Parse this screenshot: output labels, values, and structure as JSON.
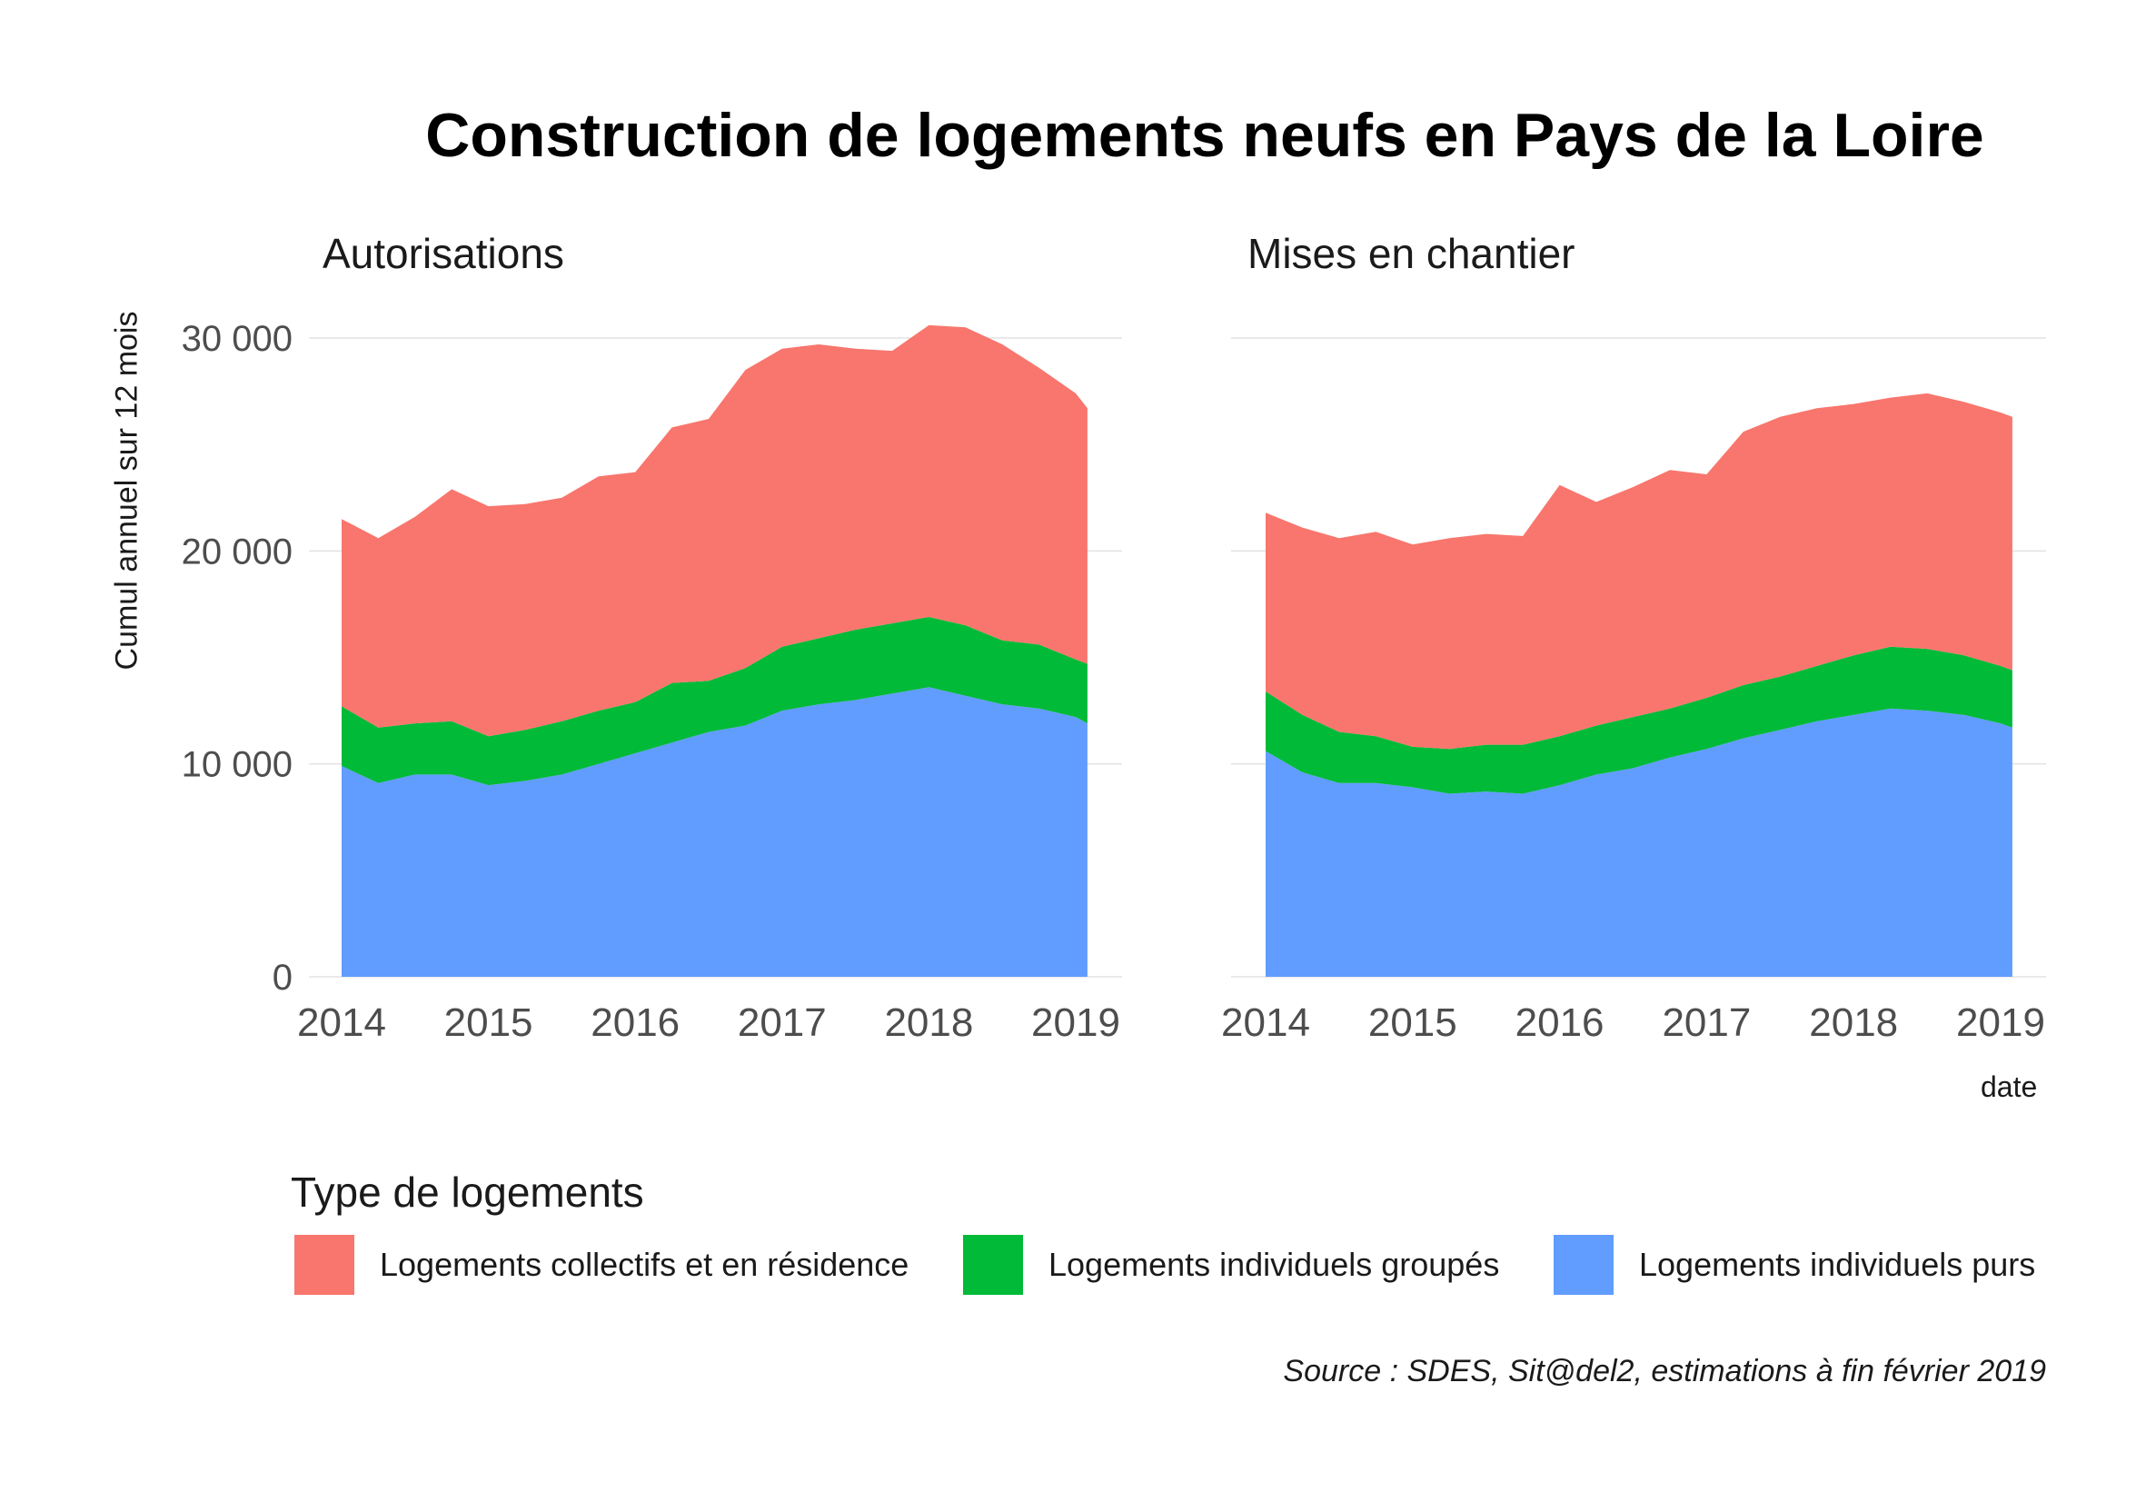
{
  "title": "Construction de logements neufs en Pays de la Loire",
  "ylabel": "Cumul annuel sur 12 mois",
  "xtitle": "date",
  "legend": {
    "title": "Type de logements",
    "items": [
      {
        "label": "Logements collectifs et en résidence",
        "color": "#F8766D"
      },
      {
        "label": "Logements individuels groupés",
        "color": "#00BA38"
      },
      {
        "label": "Logements individuels purs",
        "color": "#619CFF"
      }
    ]
  },
  "caption": "Source : SDES, Sit@del2, estimations à fin février 2019",
  "chart_data": [
    {
      "type": "area",
      "stacked": true,
      "facet": "Autorisations",
      "x": [
        2014.0,
        2014.25,
        2014.5,
        2014.75,
        2015.0,
        2015.25,
        2015.5,
        2015.75,
        2016.0,
        2016.25,
        2016.5,
        2016.75,
        2017.0,
        2017.25,
        2017.5,
        2017.75,
        2018.0,
        2018.25,
        2018.5,
        2018.75,
        2019.0,
        2019.08
      ],
      "x_ticks": [
        "2014",
        "2015",
        "2016",
        "2017",
        "2018",
        "2019"
      ],
      "y_ticks": [
        "0",
        "10 000",
        "20 000",
        "30 000"
      ],
      "ylim": [
        0,
        30500
      ],
      "grid": true,
      "series": [
        {
          "name": "Logements individuels purs",
          "values": [
            9900,
            9100,
            9500,
            9500,
            9000,
            9200,
            9500,
            10000,
            10500,
            11000,
            11500,
            11800,
            12500,
            12800,
            13000,
            13300,
            13600,
            13200,
            12800,
            12600,
            12200,
            11900
          ]
        },
        {
          "name": "Logements individuels groupés",
          "values": [
            2800,
            2600,
            2400,
            2500,
            2300,
            2400,
            2500,
            2500,
            2400,
            2800,
            2400,
            2700,
            3000,
            3100,
            3300,
            3300,
            3300,
            3300,
            3000,
            3000,
            2700,
            2800
          ]
        },
        {
          "name": "Logements collectifs et en résidence",
          "values": [
            8800,
            8900,
            9700,
            10900,
            10800,
            10600,
            10500,
            11000,
            10800,
            12000,
            12300,
            14000,
            14000,
            13800,
            13200,
            12800,
            13700,
            14000,
            13900,
            13000,
            12500,
            12000
          ]
        }
      ]
    },
    {
      "type": "area",
      "stacked": true,
      "facet": "Mises en chantier",
      "x": [
        2014.0,
        2014.25,
        2014.5,
        2014.75,
        2015.0,
        2015.25,
        2015.5,
        2015.75,
        2016.0,
        2016.25,
        2016.5,
        2016.75,
        2017.0,
        2017.25,
        2017.5,
        2017.75,
        2018.0,
        2018.25,
        2018.5,
        2018.75,
        2019.0,
        2019.08
      ],
      "x_ticks": [
        "2014",
        "2015",
        "2016",
        "2017",
        "2018",
        "2019"
      ],
      "y_ticks": [
        "0",
        "10 000",
        "20 000",
        "30 000"
      ],
      "ylim": [
        0,
        30500
      ],
      "grid": true,
      "series": [
        {
          "name": "Logements individuels purs",
          "values": [
            10600,
            9600,
            9100,
            9100,
            8900,
            8600,
            8700,
            8600,
            9000,
            9500,
            9800,
            10300,
            10700,
            11200,
            11600,
            12000,
            12300,
            12600,
            12500,
            12300,
            11900,
            11700
          ]
        },
        {
          "name": "Logements individuels groupés",
          "values": [
            2800,
            2700,
            2400,
            2200,
            1900,
            2100,
            2200,
            2300,
            2300,
            2300,
            2400,
            2300,
            2400,
            2500,
            2500,
            2600,
            2800,
            2900,
            2900,
            2800,
            2700,
            2700
          ]
        },
        {
          "name": "Logements collectifs et en résidence",
          "values": [
            8400,
            8800,
            9100,
            9600,
            9500,
            9900,
            9900,
            9800,
            11800,
            10500,
            10800,
            11200,
            10500,
            11900,
            12200,
            12100,
            11800,
            11700,
            12000,
            11900,
            11900,
            11900
          ]
        }
      ]
    }
  ]
}
